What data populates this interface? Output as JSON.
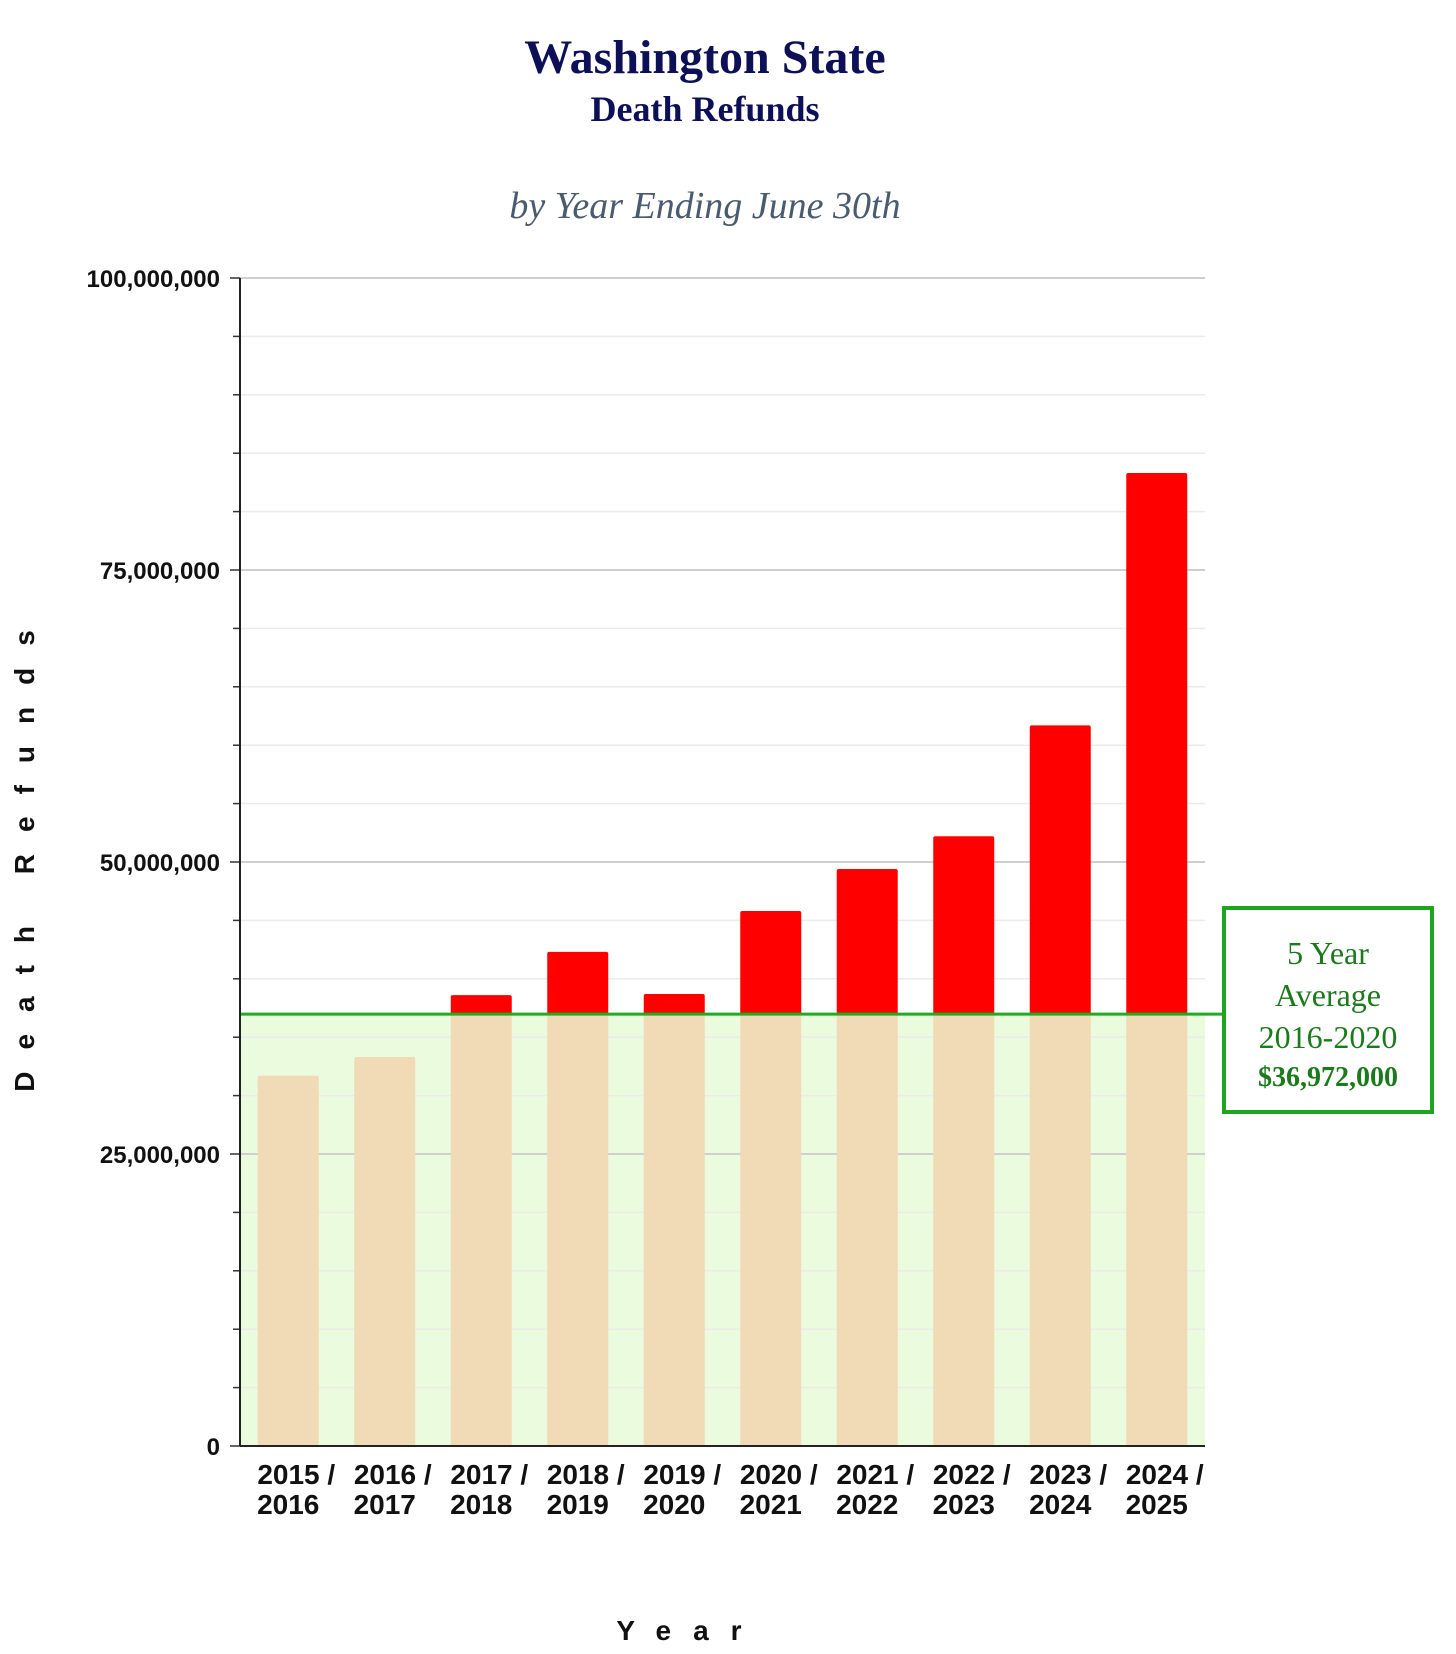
{
  "title": "Washington State",
  "subtitle": "Death Refunds",
  "subsubtitle": "by Year Ending June 30th",
  "colors": {
    "bar_above": "#ff0000",
    "bar_below": "#f1dab6",
    "avg_fill": "#ebfbdd",
    "avg_line": "#22aa22",
    "title": "#0d1057"
  },
  "chart_data": {
    "type": "bar",
    "title": "Washington State Death Refunds",
    "subtitle": "by Year Ending June 30th",
    "xlabel": "Year",
    "ylabel": "Death Refunds",
    "ylim": [
      0,
      100000000
    ],
    "yticks": [
      0,
      25000000,
      50000000,
      75000000,
      100000000
    ],
    "ytick_labels": [
      "0",
      "25,000,000",
      "50,000,000",
      "75,000,000",
      "100,000,000"
    ],
    "categories": [
      [
        "2015 /",
        "2016"
      ],
      [
        "2016 /",
        "2017"
      ],
      [
        "2017 /",
        "2018"
      ],
      [
        "2018 /",
        "2019"
      ],
      [
        "2019 /",
        "2020"
      ],
      [
        "2020 /",
        "2021"
      ],
      [
        "2021 /",
        "2022"
      ],
      [
        "2022 /",
        "2023"
      ],
      [
        "2023 /",
        "2024"
      ],
      [
        "2024 /",
        "2025"
      ]
    ],
    "values": [
      31700000,
      33300000,
      38600000,
      42300000,
      38700000,
      45800000,
      49400000,
      52200000,
      61700000,
      83300000
    ],
    "average": {
      "value": 36972000,
      "label_lines": [
        "5 Year",
        "Average",
        "2016-2020"
      ],
      "value_label": "$36,972,000"
    },
    "grid": true
  }
}
